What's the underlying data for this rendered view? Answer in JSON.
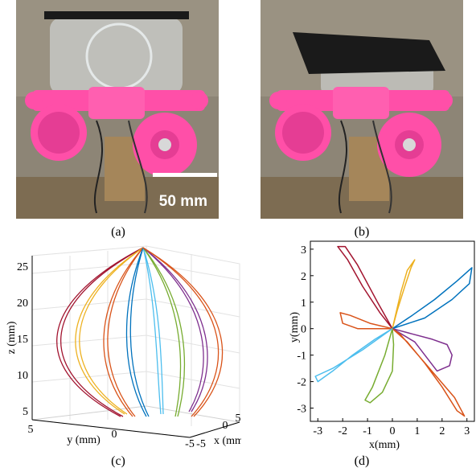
{
  "figure": {
    "captions": {
      "a": "(a)",
      "b": "(b)",
      "c": "(c)",
      "d": "(d)"
    },
    "scale_bar_label": "50 mm",
    "colors": {
      "pink": "#ff4fa8",
      "pink_dark": "#d8338a",
      "board": "#1a1a1a",
      "wood": "#a5865a",
      "background": "#8d8576"
    }
  },
  "chart_data": [
    {
      "type": "line",
      "panel": "c",
      "projection": "3d",
      "xlabel": "x (mm)",
      "ylabel": "y (mm)",
      "zlabel": "z (mm)",
      "x_ticks": [
        "-5",
        "0",
        "5"
      ],
      "y_ticks": [
        "5",
        "0",
        "-5"
      ],
      "z_ticks": [
        "5",
        "10",
        "15",
        "20",
        "25"
      ],
      "zlim": [
        4,
        27
      ],
      "grid": true,
      "series_colors": [
        "#a2142f",
        "#edb120",
        "#d95319",
        "#0072bd",
        "#4dbeee",
        "#77ac30",
        "#7e2f8e",
        "#d95319"
      ]
    },
    {
      "type": "line",
      "panel": "d",
      "xlabel": "x(mm)",
      "ylabel": "y(mm)",
      "x_ticks": [
        "-3",
        "-2",
        "-1",
        "0",
        "1",
        "2",
        "3"
      ],
      "y_ticks": [
        "3",
        "2",
        "1",
        "0",
        "-1",
        "-2",
        "-3"
      ],
      "xlim": [
        -3.3,
        3.3
      ],
      "ylim": [
        -3.5,
        3.3
      ],
      "grid": false,
      "series": [
        {
          "color": "#a2142f",
          "x": [
            0,
            -0.5,
            -1.2,
            -1.8,
            -2.2,
            -1.9,
            -1.4,
            -0.6,
            0
          ],
          "y": [
            0,
            0.6,
            1.6,
            2.6,
            3.1,
            3.1,
            2.4,
            1.0,
            0
          ]
        },
        {
          "color": "#edb120",
          "x": [
            0,
            0.15,
            0.35,
            0.6,
            0.9,
            0.75,
            0.5,
            0.2,
            0
          ],
          "y": [
            0,
            0.6,
            1.4,
            2.2,
            2.6,
            2.3,
            1.6,
            0.7,
            0
          ]
        },
        {
          "color": "#0072bd",
          "x": [
            0,
            0.8,
            1.7,
            2.6,
            3.2,
            3.1,
            2.4,
            1.3,
            0
          ],
          "y": [
            0,
            0.5,
            1.1,
            1.8,
            2.3,
            1.7,
            1.1,
            0.4,
            0
          ]
        },
        {
          "color": "#d95319",
          "x": [
            0,
            -0.9,
            -1.7,
            -2.1,
            -2.0,
            -1.4,
            -0.6,
            0
          ],
          "y": [
            0,
            0.2,
            0.5,
            0.6,
            0.2,
            0.0,
            0.0,
            0
          ]
        },
        {
          "color": "#7e2f8e",
          "x": [
            0,
            0.8,
            1.6,
            2.2,
            2.4,
            2.3,
            1.8,
            0.9,
            0
          ],
          "y": [
            0,
            -0.2,
            -0.4,
            -0.6,
            -1.0,
            -1.4,
            -1.6,
            -0.5,
            0
          ]
        },
        {
          "color": "#d95319",
          "x": [
            0,
            0.6,
            1.3,
            2.0,
            2.6,
            2.9,
            2.5,
            1.4,
            0.3,
            0
          ],
          "y": [
            0,
            -0.5,
            -1.3,
            -2.2,
            -3.1,
            -3.3,
            -2.6,
            -1.4,
            -0.2,
            0
          ]
        },
        {
          "color": "#77ac30",
          "x": [
            0,
            0.05,
            0.0,
            -0.4,
            -0.9,
            -1.1,
            -0.8,
            -0.3,
            0
          ],
          "y": [
            0,
            -0.6,
            -1.6,
            -2.4,
            -2.8,
            -2.7,
            -2.2,
            -1.0,
            0
          ]
        },
        {
          "color": "#4dbeee",
          "x": [
            0,
            -0.7,
            -1.6,
            -2.4,
            -3.0,
            -3.1,
            -2.4,
            -1.2,
            0
          ],
          "y": [
            0,
            -0.4,
            -1.0,
            -1.6,
            -2.0,
            -1.8,
            -1.5,
            -0.8,
            0
          ]
        }
      ]
    }
  ]
}
